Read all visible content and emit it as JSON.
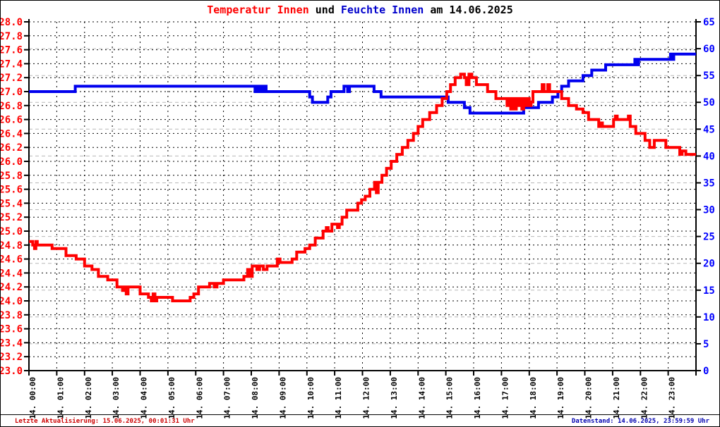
{
  "title": {
    "part1": "Temperatur Innen",
    "part2": " und ",
    "part3": "Feuchte Innen",
    "part4": " am 14.06.2025"
  },
  "footer": {
    "left": "Letzte Aktualisierung: 15.06.2025, 00:01:31 Uhr",
    "right": "Datenstand: 14.06.2025, 23:59:59 Uhr"
  },
  "colors": {
    "temperature_line": "#ff0000",
    "humidity_line": "#0000ee",
    "left_axis_labels": "#ff0000",
    "right_axis_labels": "#0000ff",
    "title_temperature": "#ff0000",
    "title_humidity": "#0000cc",
    "grid_black": "#000000",
    "grid_grey": "#b8b8b8",
    "footer_left_text": "#cc0000",
    "footer_right_text": "#0000b0"
  },
  "chart_data": {
    "type": "line",
    "title": "Temperatur Innen und Feuchte Innen am 14.06.2025",
    "grid": {
      "horizontal_left_step": 0.2,
      "horizontal_right_step": 5,
      "vertical": "hourly",
      "grid_on": true
    },
    "x_axis": {
      "range_hours": [
        0,
        24
      ],
      "tick_labels": [
        "14. 00:00",
        "14. 01:00",
        "14. 02:00",
        "14. 03:00",
        "14. 04:00",
        "14. 05:00",
        "14. 06:00",
        "14. 07:00",
        "14. 08:00",
        "14. 09:00",
        "14. 10:00",
        "14. 11:00",
        "14. 12:00",
        "14. 13:00",
        "14. 14:00",
        "14. 15:00",
        "14. 16:00",
        "14. 17:00",
        "14. 18:00",
        "14. 19:00",
        "14. 20:00",
        "14. 21:00",
        "14. 22:00",
        "14. 23:00"
      ]
    },
    "y_axis_left": {
      "name": "Temperatur Innen",
      "min": 23.0,
      "max": 28.0,
      "step": 0.2,
      "decimals": 1
    },
    "y_axis_right": {
      "name": "Feuchte Innen",
      "min": 0,
      "max": 65,
      "step": 5,
      "decimals": 0
    },
    "series": [
      {
        "name": "Feuchte Innen",
        "axis": "right",
        "color": "#0000ee",
        "step_points": [
          [
            "00:00",
            52
          ],
          [
            "01:40",
            53
          ],
          [
            "08:08",
            52
          ],
          [
            "08:12",
            53
          ],
          [
            "08:16",
            52
          ],
          [
            "08:20",
            53
          ],
          [
            "08:24",
            52
          ],
          [
            "08:28",
            53
          ],
          [
            "08:32",
            52
          ],
          [
            "10:06",
            51
          ],
          [
            "10:12",
            50
          ],
          [
            "10:45",
            51
          ],
          [
            "10:52",
            52
          ],
          [
            "11:20",
            53
          ],
          [
            "11:28",
            52
          ],
          [
            "11:32",
            53
          ],
          [
            "12:25",
            52
          ],
          [
            "12:40",
            51
          ],
          [
            "15:05",
            50
          ],
          [
            "15:40",
            49
          ],
          [
            "15:52",
            48
          ],
          [
            "17:48",
            49
          ],
          [
            "18:20",
            50
          ],
          [
            "18:50",
            51
          ],
          [
            "19:02",
            52
          ],
          [
            "19:10",
            53
          ],
          [
            "19:25",
            54
          ],
          [
            "19:56",
            55
          ],
          [
            "20:15",
            56
          ],
          [
            "20:45",
            57
          ],
          [
            "21:48",
            58
          ],
          [
            "21:52",
            57
          ],
          [
            "21:56",
            58
          ],
          [
            "23:05",
            59
          ],
          [
            "23:08",
            58
          ],
          [
            "23:12",
            59
          ]
        ]
      },
      {
        "name": "Temperatur Innen",
        "axis": "left",
        "color": "#ff0000",
        "step_points": [
          [
            "00:00",
            24.85
          ],
          [
            "00:08",
            24.8
          ],
          [
            "00:12",
            24.75
          ],
          [
            "00:15",
            24.85
          ],
          [
            "00:18",
            24.8
          ],
          [
            "00:50",
            24.75
          ],
          [
            "01:20",
            24.65
          ],
          [
            "01:42",
            24.6
          ],
          [
            "02:00",
            24.5
          ],
          [
            "02:16",
            24.45
          ],
          [
            "02:30",
            24.35
          ],
          [
            "02:50",
            24.3
          ],
          [
            "03:10",
            24.2
          ],
          [
            "03:22",
            24.15
          ],
          [
            "03:26",
            24.2
          ],
          [
            "03:30",
            24.1
          ],
          [
            "03:34",
            24.2
          ],
          [
            "04:00",
            24.1
          ],
          [
            "04:18",
            24.05
          ],
          [
            "04:24",
            24.0
          ],
          [
            "04:28",
            24.1
          ],
          [
            "04:32",
            24.0
          ],
          [
            "04:36",
            24.05
          ],
          [
            "05:10",
            24.0
          ],
          [
            "05:48",
            24.05
          ],
          [
            "05:56",
            24.1
          ],
          [
            "06:06",
            24.2
          ],
          [
            "06:30",
            24.25
          ],
          [
            "06:40",
            24.2
          ],
          [
            "06:46",
            24.25
          ],
          [
            "07:00",
            24.3
          ],
          [
            "07:44",
            24.35
          ],
          [
            "07:52",
            24.45
          ],
          [
            "07:56",
            24.35
          ],
          [
            "08:02",
            24.5
          ],
          [
            "08:12",
            24.45
          ],
          [
            "08:18",
            24.5
          ],
          [
            "08:26",
            24.45
          ],
          [
            "08:34",
            24.5
          ],
          [
            "08:56",
            24.6
          ],
          [
            "09:02",
            24.55
          ],
          [
            "09:28",
            24.6
          ],
          [
            "09:38",
            24.7
          ],
          [
            "09:56",
            24.75
          ],
          [
            "10:06",
            24.8
          ],
          [
            "10:18",
            24.9
          ],
          [
            "10:35",
            25.0
          ],
          [
            "10:42",
            25.05
          ],
          [
            "10:46",
            25.0
          ],
          [
            "10:54",
            25.1
          ],
          [
            "11:06",
            25.05
          ],
          [
            "11:10",
            25.1
          ],
          [
            "11:16",
            25.2
          ],
          [
            "11:26",
            25.3
          ],
          [
            "11:50",
            25.4
          ],
          [
            "11:58",
            25.45
          ],
          [
            "12:06",
            25.5
          ],
          [
            "12:16",
            25.6
          ],
          [
            "12:26",
            25.7
          ],
          [
            "12:30",
            25.55
          ],
          [
            "12:34",
            25.7
          ],
          [
            "12:42",
            25.8
          ],
          [
            "12:52",
            25.9
          ],
          [
            "13:02",
            26.0
          ],
          [
            "13:14",
            26.1
          ],
          [
            "13:26",
            26.2
          ],
          [
            "13:38",
            26.3
          ],
          [
            "13:50",
            26.4
          ],
          [
            "14:00",
            26.5
          ],
          [
            "14:10",
            26.6
          ],
          [
            "14:25",
            26.7
          ],
          [
            "14:40",
            26.8
          ],
          [
            "14:52",
            26.9
          ],
          [
            "15:02",
            27.0
          ],
          [
            "15:10",
            27.1
          ],
          [
            "15:20",
            27.2
          ],
          [
            "15:32",
            27.25
          ],
          [
            "15:40",
            27.2
          ],
          [
            "15:44",
            27.1
          ],
          [
            "15:50",
            27.25
          ],
          [
            "15:56",
            27.2
          ],
          [
            "16:06",
            27.1
          ],
          [
            "16:30",
            27.0
          ],
          [
            "16:48",
            26.9
          ],
          [
            "17:12",
            26.8
          ],
          [
            "17:16",
            26.9
          ],
          [
            "17:20",
            26.75
          ],
          [
            "17:24",
            26.9
          ],
          [
            "17:28",
            26.75
          ],
          [
            "17:32",
            26.9
          ],
          [
            "17:36",
            26.8
          ],
          [
            "17:40",
            26.9
          ],
          [
            "17:44",
            26.75
          ],
          [
            "17:48",
            26.9
          ],
          [
            "17:52",
            26.8
          ],
          [
            "17:56",
            26.9
          ],
          [
            "18:00",
            26.8
          ],
          [
            "18:04",
            26.85
          ],
          [
            "18:08",
            27.0
          ],
          [
            "18:28",
            27.1
          ],
          [
            "18:32",
            27.0
          ],
          [
            "18:40",
            27.1
          ],
          [
            "18:44",
            27.0
          ],
          [
            "19:10",
            26.9
          ],
          [
            "19:25",
            26.8
          ],
          [
            "19:42",
            26.75
          ],
          [
            "19:56",
            26.7
          ],
          [
            "20:08",
            26.6
          ],
          [
            "20:30",
            26.5
          ],
          [
            "20:34",
            26.55
          ],
          [
            "20:38",
            26.5
          ],
          [
            "21:02",
            26.6
          ],
          [
            "21:06",
            26.65
          ],
          [
            "21:10",
            26.6
          ],
          [
            "21:34",
            26.65
          ],
          [
            "21:38",
            26.5
          ],
          [
            "21:50",
            26.4
          ],
          [
            "22:10",
            26.3
          ],
          [
            "22:20",
            26.2
          ],
          [
            "22:30",
            26.3
          ],
          [
            "22:55",
            26.2
          ],
          [
            "23:25",
            26.1
          ],
          [
            "23:30",
            26.15
          ],
          [
            "23:38",
            26.1
          ]
        ]
      }
    ]
  }
}
